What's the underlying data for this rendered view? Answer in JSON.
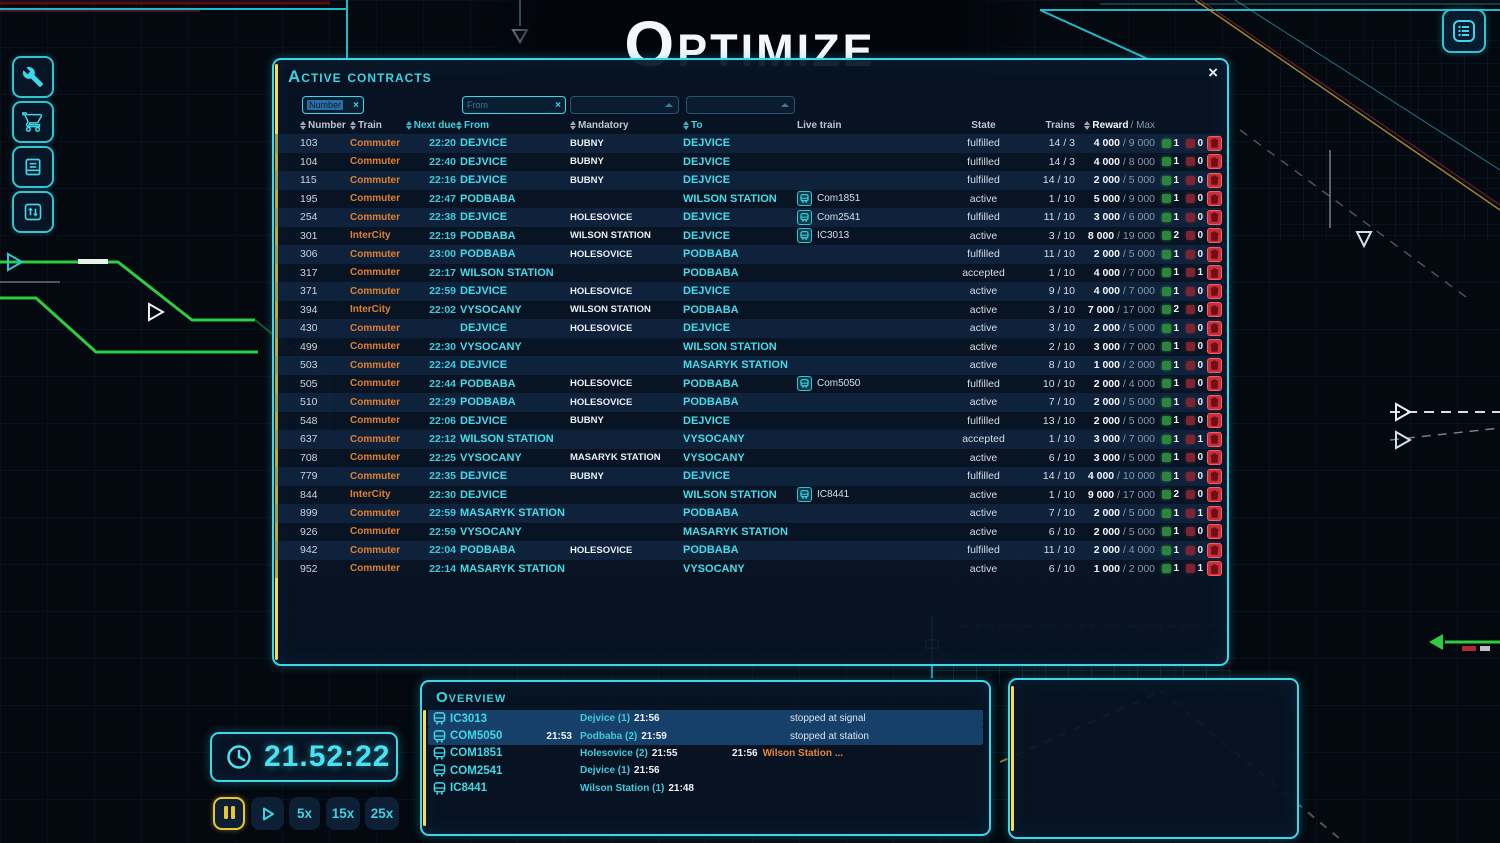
{
  "title": "Optimize",
  "topbar": {
    "menu_icon": "list-icon"
  },
  "sidebar": {
    "items": [
      {
        "icon": "wrench-icon"
      },
      {
        "icon": "cart-icon"
      },
      {
        "icon": "book-icon"
      },
      {
        "icon": "switches-icon"
      }
    ]
  },
  "contracts_window": {
    "title": "Active Contracts",
    "close_label": "×",
    "filters": {
      "number_filter": {
        "value": "Number",
        "clear_label": "×"
      },
      "from_filter": {
        "value": "From",
        "clear_label": "×"
      }
    },
    "columns": [
      {
        "label": "Number",
        "sort": true,
        "teal": false,
        "align": "l"
      },
      {
        "label": "Train",
        "sort": true,
        "teal": false,
        "align": "l"
      },
      {
        "label": "Next due",
        "sort": true,
        "teal": true,
        "align": "r"
      },
      {
        "label": "From",
        "sort": true,
        "teal": true,
        "align": "l"
      },
      {
        "label": "Mandatory",
        "sort": true,
        "teal": false,
        "align": "l"
      },
      {
        "label": "To",
        "sort": true,
        "teal": true,
        "align": "l"
      },
      {
        "label": "Live train",
        "sort": false,
        "teal": false,
        "align": "l"
      },
      {
        "label": "State",
        "sort": false,
        "teal": false,
        "align": "c"
      },
      {
        "label": "Trains",
        "sort": false,
        "teal": false,
        "align": "r"
      },
      {
        "label": "Reward / Max",
        "sort": true,
        "teal": false,
        "align": "r",
        "reward_header": true
      }
    ],
    "rows": [
      {
        "number": "103",
        "train": "Commuter",
        "next_due": "22:20",
        "from": "DEJVICE",
        "mandatory": "BUBNY",
        "to": "DEJVICE",
        "live_train": "",
        "state": "fulfilled",
        "trains": "14 / 3",
        "reward": "4 000",
        "reward_max": "9 000",
        "green": "1",
        "red": "0"
      },
      {
        "number": "104",
        "train": "Commuter",
        "next_due": "22:40",
        "from": "DEJVICE",
        "mandatory": "BUBNY",
        "to": "DEJVICE",
        "live_train": "",
        "state": "fulfilled",
        "trains": "14 / 3",
        "reward": "4 000",
        "reward_max": "8 000",
        "green": "1",
        "red": "0"
      },
      {
        "number": "115",
        "train": "Commuter",
        "next_due": "22:16",
        "from": "DEJVICE",
        "mandatory": "BUBNY",
        "to": "DEJVICE",
        "live_train": "",
        "state": "fulfilled",
        "trains": "14 / 10",
        "reward": "2 000",
        "reward_max": "5 000",
        "green": "1",
        "red": "0"
      },
      {
        "number": "195",
        "train": "Commuter",
        "next_due": "22:47",
        "from": "PODBABA",
        "mandatory": "",
        "to": "WILSON STATION",
        "live_train": "Com1851",
        "state": "active",
        "trains": "1 / 10",
        "reward": "5 000",
        "reward_max": "9 000",
        "green": "1",
        "red": "0"
      },
      {
        "number": "254",
        "train": "Commuter",
        "next_due": "22:38",
        "from": "DEJVICE",
        "mandatory": "HOLESOVICE",
        "to": "DEJVICE",
        "live_train": "Com2541",
        "state": "fulfilled",
        "trains": "11 / 10",
        "reward": "3 000",
        "reward_max": "6 000",
        "green": "1",
        "red": "0"
      },
      {
        "number": "301",
        "train": "InterCity",
        "next_due": "22:19",
        "from": "PODBABA",
        "mandatory": "WILSON STATION",
        "to": "DEJVICE",
        "live_train": "IC3013",
        "state": "active",
        "trains": "3 / 10",
        "reward": "8 000",
        "reward_max": "19 000",
        "green": "2",
        "red": "0"
      },
      {
        "number": "306",
        "train": "Commuter",
        "next_due": "23:00",
        "from": "PODBABA",
        "mandatory": "HOLESOVICE",
        "to": "PODBABA",
        "live_train": "",
        "state": "fulfilled",
        "trains": "11 / 10",
        "reward": "2 000",
        "reward_max": "5 000",
        "green": "1",
        "red": "0"
      },
      {
        "number": "317",
        "train": "Commuter",
        "next_due": "22:17",
        "from": "WILSON STATION",
        "mandatory": "",
        "to": "PODBABA",
        "live_train": "",
        "state": "accepted",
        "trains": "1 / 10",
        "reward": "4 000",
        "reward_max": "7 000",
        "green": "1",
        "red": "1"
      },
      {
        "number": "371",
        "train": "Commuter",
        "next_due": "22:59",
        "from": "DEJVICE",
        "mandatory": "HOLESOVICE",
        "to": "DEJVICE",
        "live_train": "",
        "state": "active",
        "trains": "9 / 10",
        "reward": "4 000",
        "reward_max": "7 000",
        "green": "1",
        "red": "0"
      },
      {
        "number": "394",
        "train": "InterCity",
        "next_due": "22:02",
        "from": "VYSOCANY",
        "mandatory": "WILSON STATION",
        "to": "PODBABA",
        "live_train": "",
        "state": "active",
        "trains": "3 / 10",
        "reward": "7 000",
        "reward_max": "17 000",
        "green": "2",
        "red": "0"
      },
      {
        "number": "430",
        "train": "Commuter",
        "next_due": "",
        "from": "DEJVICE",
        "mandatory": "HOLESOVICE",
        "to": "DEJVICE",
        "live_train": "",
        "state": "active",
        "trains": "3 / 10",
        "reward": "2 000",
        "reward_max": "5 000",
        "green": "1",
        "red": "0"
      },
      {
        "number": "499",
        "train": "Commuter",
        "next_due": "22:30",
        "from": "VYSOCANY",
        "mandatory": "",
        "to": "WILSON STATION",
        "live_train": "",
        "state": "active",
        "trains": "2 / 10",
        "reward": "3 000",
        "reward_max": "7 000",
        "green": "1",
        "red": "0"
      },
      {
        "number": "503",
        "train": "Commuter",
        "next_due": "22:24",
        "from": "DEJVICE",
        "mandatory": "",
        "to": "MASARYK STATION",
        "live_train": "",
        "state": "active",
        "trains": "8 / 10",
        "reward": "1 000",
        "reward_max": "2 000",
        "green": "1",
        "red": "0"
      },
      {
        "number": "505",
        "train": "Commuter",
        "next_due": "22:44",
        "from": "PODBABA",
        "mandatory": "HOLESOVICE",
        "to": "PODBABA",
        "live_train": "Com5050",
        "state": "fulfilled",
        "trains": "10 / 10",
        "reward": "2 000",
        "reward_max": "4 000",
        "green": "1",
        "red": "0"
      },
      {
        "number": "510",
        "train": "Commuter",
        "next_due": "22:29",
        "from": "PODBABA",
        "mandatory": "HOLESOVICE",
        "to": "PODBABA",
        "live_train": "",
        "state": "active",
        "trains": "7 / 10",
        "reward": "2 000",
        "reward_max": "5 000",
        "green": "1",
        "red": "0"
      },
      {
        "number": "548",
        "train": "Commuter",
        "next_due": "22:06",
        "from": "DEJVICE",
        "mandatory": "BUBNY",
        "to": "DEJVICE",
        "live_train": "",
        "state": "fulfilled",
        "trains": "13 / 10",
        "reward": "2 000",
        "reward_max": "5 000",
        "green": "1",
        "red": "0"
      },
      {
        "number": "637",
        "train": "Commuter",
        "next_due": "22:12",
        "from": "WILSON STATION",
        "mandatory": "",
        "to": "VYSOCANY",
        "live_train": "",
        "state": "accepted",
        "trains": "1 / 10",
        "reward": "3 000",
        "reward_max": "7 000",
        "green": "1",
        "red": "1"
      },
      {
        "number": "708",
        "train": "Commuter",
        "next_due": "22:25",
        "from": "VYSOCANY",
        "mandatory": "MASARYK STATION",
        "to": "VYSOCANY",
        "live_train": "",
        "state": "active",
        "trains": "6 / 10",
        "reward": "3 000",
        "reward_max": "5 000",
        "green": "1",
        "red": "0"
      },
      {
        "number": "779",
        "train": "Commuter",
        "next_due": "22:35",
        "from": "DEJVICE",
        "mandatory": "BUBNY",
        "to": "DEJVICE",
        "live_train": "",
        "state": "fulfilled",
        "trains": "14 / 10",
        "reward": "4 000",
        "reward_max": "10 000",
        "green": "1",
        "red": "0"
      },
      {
        "number": "844",
        "train": "InterCity",
        "next_due": "22:30",
        "from": "DEJVICE",
        "mandatory": "",
        "to": "WILSON STATION",
        "live_train": "IC8441",
        "state": "active",
        "trains": "1 / 10",
        "reward": "9 000",
        "reward_max": "17 000",
        "green": "2",
        "red": "0"
      },
      {
        "number": "899",
        "train": "Commuter",
        "next_due": "22:59",
        "from": "MASARYK STATION",
        "mandatory": "",
        "to": "PODBABA",
        "live_train": "",
        "state": "active",
        "trains": "7 / 10",
        "reward": "2 000",
        "reward_max": "5 000",
        "green": "1",
        "red": "1"
      },
      {
        "number": "926",
        "train": "Commuter",
        "next_due": "22:59",
        "from": "VYSOCANY",
        "mandatory": "",
        "to": "MASARYK STATION",
        "live_train": "",
        "state": "active",
        "trains": "6 / 10",
        "reward": "2 000",
        "reward_max": "5 000",
        "green": "1",
        "red": "0"
      },
      {
        "number": "942",
        "train": "Commuter",
        "next_due": "22:04",
        "from": "PODBABA",
        "mandatory": "HOLESOVICE",
        "to": "PODBABA",
        "live_train": "",
        "state": "fulfilled",
        "trains": "11 / 10",
        "reward": "2 000",
        "reward_max": "4 000",
        "green": "1",
        "red": "0"
      },
      {
        "number": "952",
        "train": "Commuter",
        "next_due": "22:14",
        "from": "MASARYK STATION",
        "mandatory": "",
        "to": "VYSOCANY",
        "live_train": "",
        "state": "active",
        "trains": "6 / 10",
        "reward": "1 000",
        "reward_max": "2 000",
        "green": "1",
        "red": "1"
      }
    ]
  },
  "overview": {
    "title": "Overview",
    "rows": [
      {
        "train": "IC3013",
        "prev_time": "",
        "stop": "Dejvice (1)",
        "stop_time": "21:56",
        "next_time": "",
        "next_stop": "",
        "status": "stopped at signal",
        "highlight": true
      },
      {
        "train": "COM5050",
        "prev_time": "21:53",
        "stop": "Podbaba (2)",
        "stop_time": "21:59",
        "next_time": "",
        "next_stop": "",
        "status": "stopped at station",
        "highlight": true
      },
      {
        "train": "COM1851",
        "prev_time": "",
        "stop": "Holesovice (2)",
        "stop_time": "21:55",
        "next_time": "21:56",
        "next_stop": "Wilson Station ...",
        "status": "",
        "highlight": false
      },
      {
        "train": "COM2541",
        "prev_time": "",
        "stop": "Dejvice (1)",
        "stop_time": "21:56",
        "next_time": "",
        "next_stop": "",
        "status": "",
        "highlight": false
      },
      {
        "train": "IC8441",
        "prev_time": "",
        "stop": "Wilson Station (1)",
        "stop_time": "21:48",
        "next_time": "",
        "next_stop": "",
        "status": "",
        "highlight": false
      }
    ]
  },
  "clock": {
    "time": "21.52:22",
    "icon": "clock-icon"
  },
  "speed_controls": {
    "pause_icon": "pause-icon",
    "play_icon": "play-icon",
    "speeds": [
      "5x",
      "15x",
      "25x"
    ],
    "active": "pause"
  },
  "colors": {
    "accent_teal": "#3cd8e8",
    "accent_yellow": "#ffd84d",
    "orange": "#e07f2e",
    "green_counter": "#2c8639",
    "red_counter": "#7e2430",
    "delete_red": "#c92f38"
  }
}
